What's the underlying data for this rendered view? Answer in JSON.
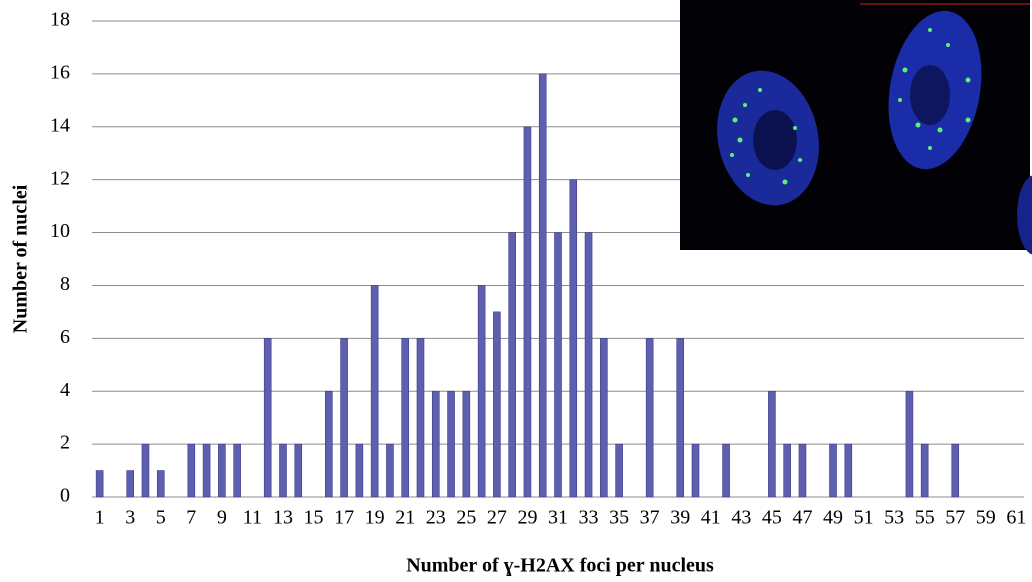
{
  "chart_data": {
    "type": "bar",
    "x_label": "Number of ɣ-H2AX foci per nucleus",
    "y_label": "Number of nuclei",
    "categories": [
      "1",
      null,
      "3",
      null,
      "5",
      null,
      "7",
      null,
      "9",
      null,
      "11",
      null,
      "13",
      null,
      "15",
      null,
      "17",
      null,
      "19",
      null,
      "21",
      null,
      "23",
      null,
      "25",
      null,
      "27",
      null,
      "29",
      null,
      "31",
      null,
      "33",
      null,
      "35",
      null,
      "37",
      null,
      "39",
      null,
      "41",
      null,
      "43",
      null,
      "45",
      null,
      "47",
      null,
      "49",
      null,
      "51",
      null,
      "53",
      null,
      "55",
      null,
      "57",
      null,
      "59",
      null,
      "61"
    ],
    "values": [
      1,
      0,
      1,
      2,
      1,
      0,
      2,
      2,
      2,
      2,
      0,
      6,
      2,
      2,
      0,
      4,
      6,
      2,
      8,
      2,
      6,
      6,
      4,
      4,
      4,
      8,
      7,
      10,
      14,
      16,
      10,
      12,
      10,
      6,
      2,
      0,
      6,
      0,
      6,
      2,
      0,
      2,
      0,
      0,
      4,
      2,
      2,
      0,
      2,
      2,
      0,
      0,
      0,
      4,
      2,
      0,
      2,
      0,
      0,
      0,
      0
    ],
    "color": "#5f5fb0",
    "ylim": [
      0,
      18
    ],
    "yticks": [
      0,
      2,
      4,
      6,
      8,
      10,
      12,
      14,
      16,
      18
    ],
    "grid": true
  }
}
